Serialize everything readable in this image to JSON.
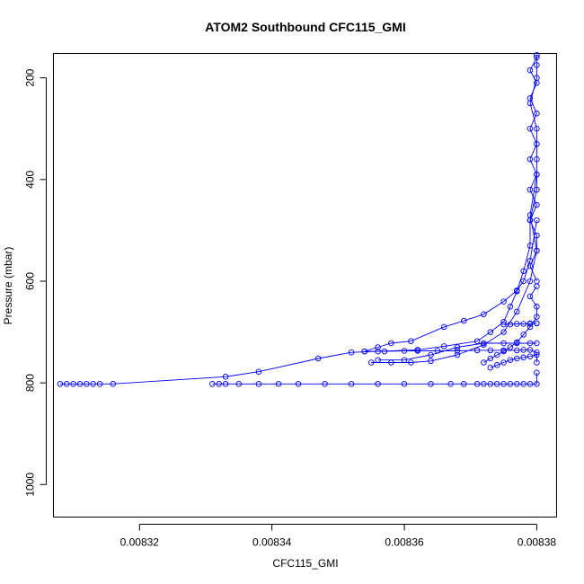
{
  "chart_data": {
    "type": "line",
    "title": "ATOM2 Southbound CFC115_GMI",
    "xlabel": "CFC115_GMI",
    "ylabel": "Pressure (mbar)",
    "xlim": [
      0.008307,
      0.008383
    ],
    "ylim": [
      1064,
      152
    ],
    "y_reversed": true,
    "grid": false,
    "color": "#0000ff",
    "marker": "open-circle",
    "xticks": [
      {
        "value": 0.00832,
        "label": "0.00832"
      },
      {
        "value": 0.00834,
        "label": "0.00834"
      },
      {
        "value": 0.00836,
        "label": "0.00836"
      },
      {
        "value": 0.00838,
        "label": "0.00838"
      }
    ],
    "yticks": [
      {
        "value": 200,
        "label": "200"
      },
      {
        "value": 400,
        "label": "400"
      },
      {
        "value": 600,
        "label": "600"
      },
      {
        "value": 800,
        "label": "800"
      },
      {
        "value": 1000,
        "label": "1000"
      }
    ],
    "series": [
      {
        "x": [
          0.008308,
          0.008309,
          0.00831,
          0.008311,
          0.008312,
          0.008313,
          0.008314,
          0.008316,
          0.008333,
          0.008338,
          0.008347,
          0.008352,
          0.008356,
          0.008362,
          0.008366,
          0.008371,
          0.008373,
          0.008375,
          0.008376,
          0.008377,
          0.008378,
          0.008379,
          0.008379,
          0.00838,
          0.00838,
          0.00838,
          0.008379,
          0.00838,
          0.00838,
          0.00838
        ],
        "y": [
          802,
          802,
          802,
          802,
          802,
          802,
          802,
          802,
          788,
          778,
          752,
          740,
          738,
          735,
          728,
          718,
          700,
          680,
          650,
          620,
          580,
          530,
          480,
          420,
          360,
          300,
          250,
          200,
          175,
          155
        ]
      },
      {
        "x": [
          0.008331,
          0.008332,
          0.008333,
          0.008335,
          0.008338,
          0.008341,
          0.008344,
          0.008348,
          0.008352,
          0.008356,
          0.00836,
          0.008364,
          0.008367,
          0.008369,
          0.008371,
          0.008372,
          0.008373,
          0.008374,
          0.008375,
          0.008376,
          0.008377,
          0.008378,
          0.008379,
          0.00838,
          0.00838
        ],
        "y": [
          802,
          802,
          802,
          802,
          802,
          802,
          802,
          802,
          802,
          802,
          802,
          802,
          802,
          802,
          802,
          802,
          802,
          802,
          802,
          802,
          802,
          802,
          802,
          802,
          780
        ]
      },
      {
        "x": [
          0.008354,
          0.008357,
          0.00836,
          0.008362,
          0.008365,
          0.008368,
          0.008371,
          0.008373,
          0.008375,
          0.008377,
          0.008378,
          0.008379,
          0.00838,
          0.00838
        ],
        "y": [
          738,
          738,
          737,
          737,
          737,
          737,
          736,
          736,
          736,
          736,
          735,
          735,
          740,
          760
        ]
      },
      {
        "x": [
          0.008355,
          0.008358,
          0.008361,
          0.008364,
          0.008368,
          0.008372,
          0.008375,
          0.008377,
          0.008379,
          0.00838,
          0.008379,
          0.00838
        ],
        "y": [
          760,
          760,
          760,
          757,
          745,
          725,
          700,
          660,
          600,
          540,
          470,
          390
        ]
      },
      {
        "x": [
          0.008354,
          0.008356,
          0.008358,
          0.008361,
          0.008366,
          0.008369,
          0.008372,
          0.008375,
          0.008377,
          0.008378,
          0.008379,
          0.00838
        ],
        "y": [
          738,
          730,
          722,
          718,
          690,
          678,
          665,
          640,
          618,
          600,
          560,
          480
        ]
      },
      {
        "x": [
          0.008356,
          0.00836,
          0.008364,
          0.008368,
          0.008372,
          0.008375,
          0.008377,
          0.008379,
          0.00838
        ],
        "y": [
          755,
          755,
          745,
          730,
          722,
          722,
          722,
          722,
          722
        ]
      },
      {
        "x": [
          0.008372,
          0.008373,
          0.008374,
          0.008375,
          0.008376,
          0.008377,
          0.008378,
          0.008379,
          0.00838,
          0.00838,
          0.008379,
          0.00838
        ],
        "y": [
          760,
          752,
          745,
          738,
          730,
          720,
          705,
          690,
          670,
          650,
          630,
          610
        ]
      },
      {
        "x": [
          0.008375,
          0.008376,
          0.008377,
          0.008378,
          0.008379,
          0.008379,
          0.00838,
          0.00838
        ],
        "y": [
          685,
          685,
          684,
          684,
          684,
          683,
          683,
          683
        ]
      },
      {
        "x": [
          0.008373,
          0.008374,
          0.008375,
          0.008376,
          0.008377,
          0.008378,
          0.008379,
          0.00838
        ],
        "y": [
          770,
          765,
          760,
          755,
          752,
          750,
          748,
          745
        ]
      },
      {
        "x": [
          0.00838,
          0.008379,
          0.00838,
          0.008379,
          0.00838,
          0.008379,
          0.00838,
          0.008379,
          0.00838,
          0.008379,
          0.00838,
          0.008379,
          0.00838,
          0.00838,
          0.008379,
          0.00838
        ],
        "y": [
          160,
          185,
          210,
          240,
          270,
          300,
          330,
          360,
          390,
          420,
          450,
          480,
          510,
          540,
          570,
          600
        ]
      }
    ]
  }
}
